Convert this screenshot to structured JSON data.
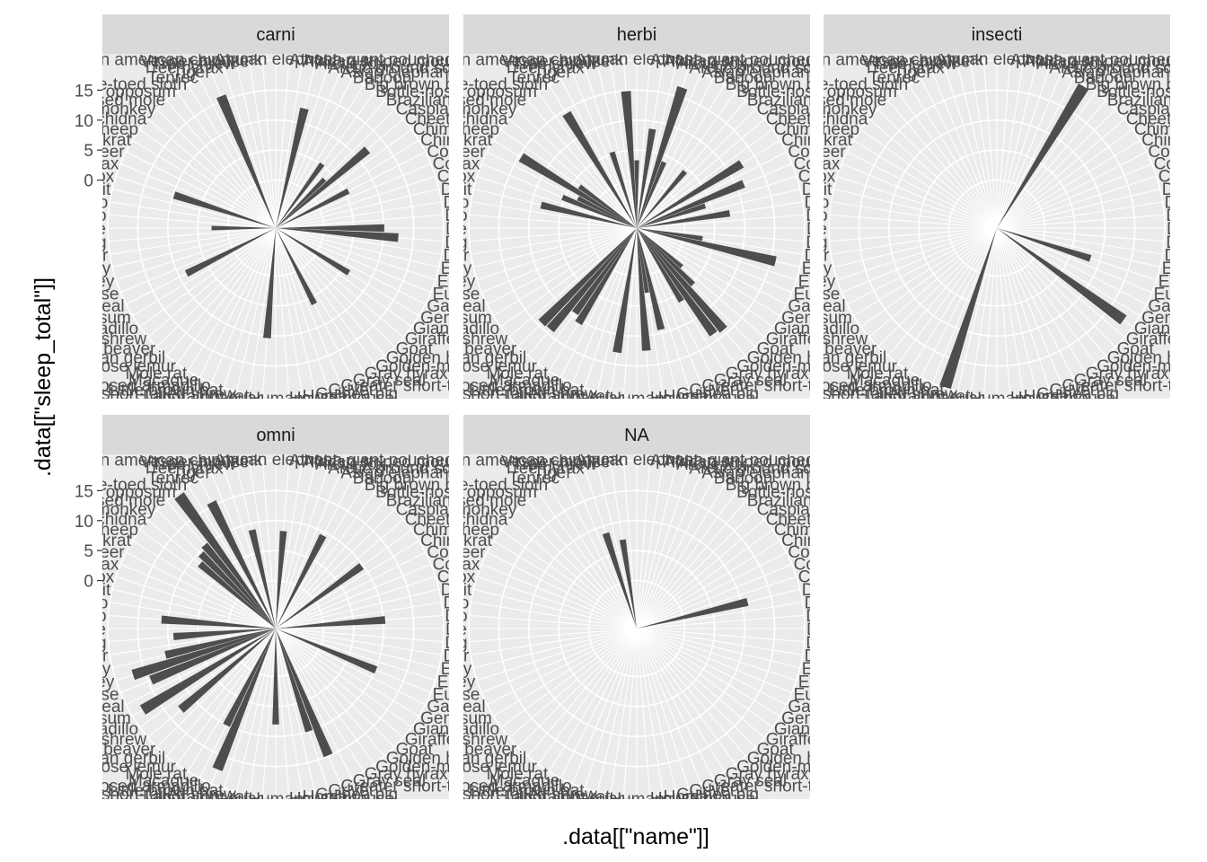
{
  "chart_data": {
    "type": "bar",
    "coord": "polar",
    "facet_var": "vore",
    "xlabel": ".data[[\"name\"]]",
    "ylabel": ".data[[\"sleep_total\"]]",
    "ylim": [
      -8,
      20
    ],
    "y_ticks": [
      0,
      5,
      10,
      15
    ],
    "y_tick_labels": [
      "0",
      "5",
      "10",
      "15"
    ],
    "bar_color": "#4d4d4d",
    "panel_background": "#ebebeb",
    "strip_background": "#d9d9d9",
    "grid_color": "#ffffff",
    "categories": [
      "African elephant",
      "African giant pouched rat",
      "African striped mouse",
      "Arctic fox",
      "Arctic ground squirrel",
      "Asian elephant",
      "Baboon",
      "Big brown bat",
      "Bottle-nosed dolphin",
      "Brazilian tapir",
      "Caspian seal",
      "Cheetah",
      "Chimpanzee",
      "Chinchilla",
      "Common porpoise",
      "Cotton rat",
      "Cow",
      "Deer mouse",
      "Degu",
      "Desert hedgehog",
      "Dog",
      "Domestic cat",
      "Donkey",
      "Eastern american chipmunk",
      "Eastern american mole",
      "European hedgehog",
      "Galago",
      "Genet",
      "Giant armadillo",
      "Giraffe",
      "Goat",
      "Golden hamster",
      "Golden-mantled ground squirrel",
      "Gray hyrax",
      "Gray seal",
      "Greater short-tailed shrew",
      "Grivet",
      "Guinea pig",
      "Horse",
      "House mouse",
      "Human",
      "Jaguar",
      "Laboratory rat",
      "Lesser short-tailed shrew",
      "Little brown bat",
      "Long-nosed armadillo",
      "Macaque",
      "Mole rat",
      "Mongoose lemur",
      "Mongolian gerbil",
      "Mountain beaver",
      "Musk shrew",
      "Nine-banded armadillo",
      "North American Opossum",
      "Northern fur seal",
      "Northern grasshopper mouse",
      "Owl monkey",
      "Patas monkey",
      "Phalanger",
      "Pig",
      "Pilot whale",
      "Potoroo",
      "Potto",
      "Rabbit",
      "Red fox",
      "Rock hyrax",
      "Roe deer",
      "Round-tailed muskrat",
      "Sheep",
      "Short-nosed echidna",
      "Squirrel monkey",
      "Star-nosed mole",
      "Thick-tailed opposum",
      "Three-toed sloth",
      "Tenrec",
      "Tiger",
      "Tree hyrax",
      "Tree shrew",
      "Vesper mouse",
      "Western american chipmunk"
    ],
    "panels": [
      {
        "label": "carni",
        "values": [
          null,
          null,
          null,
          12.5,
          null,
          null,
          null,
          null,
          5.2,
          null,
          3.5,
          12.1,
          null,
          null,
          5.6,
          null,
          null,
          null,
          null,
          null,
          10.1,
          12.5,
          null,
          null,
          null,
          null,
          null,
          6.3,
          null,
          null,
          null,
          null,
          null,
          null,
          6.2,
          null,
          null,
          null,
          null,
          null,
          null,
          10.4,
          null,
          null,
          null,
          null,
          null,
          null,
          null,
          null,
          null,
          null,
          null,
          null,
          8.7,
          null,
          null,
          null,
          null,
          null,
          2.7,
          null,
          null,
          null,
          9.8,
          null,
          null,
          null,
          null,
          null,
          null,
          null,
          null,
          null,
          null,
          15.8,
          null,
          null,
          null,
          null
        ]
      },
      {
        "label": "herbi",
        "values": [
          3.3,
          null,
          8.7,
          null,
          16.6,
          3.9,
          null,
          null,
          null,
          4.4,
          null,
          null,
          null,
          12.5,
          null,
          11.3,
          4.0,
          null,
          7.7,
          null,
          null,
          null,
          3.1,
          15.8,
          null,
          null,
          null,
          null,
          null,
          1.9,
          5.3,
          14.3,
          13.8,
          6.3,
          null,
          null,
          null,
          9.4,
          2.9,
          12.5,
          null,
          null,
          13.0,
          null,
          null,
          null,
          null,
          10.6,
          9.5,
          14.2,
          14.4,
          null,
          null,
          null,
          null,
          null,
          null,
          null,
          null,
          null,
          null,
          null,
          null,
          8.4,
          null,
          5.4,
          3.0,
          14.6,
          3.8,
          null,
          null,
          null,
          null,
          14.4,
          null,
          null,
          5.3,
          null,
          null,
          14.9
        ]
      },
      {
        "label": "insecti",
        "values": [
          null,
          null,
          null,
          null,
          null,
          null,
          null,
          19.7,
          null,
          null,
          null,
          null,
          null,
          null,
          null,
          null,
          null,
          null,
          null,
          null,
          null,
          null,
          null,
          null,
          8.4,
          null,
          null,
          null,
          18.1,
          null,
          null,
          null,
          null,
          null,
          null,
          null,
          null,
          null,
          null,
          null,
          null,
          null,
          null,
          null,
          19.9,
          null,
          null,
          null,
          null,
          null,
          null,
          null,
          null,
          null,
          null,
          null,
          null,
          null,
          null,
          null,
          null,
          null,
          null,
          null,
          null,
          null,
          null,
          null,
          null,
          null,
          null,
          null,
          null,
          null,
          null,
          null,
          null,
          null,
          null,
          null
        ]
      },
      {
        "label": "omni",
        "values": [
          null,
          8.3,
          null,
          null,
          null,
          null,
          9.4,
          null,
          null,
          null,
          null,
          null,
          9.7,
          null,
          null,
          null,
          null,
          null,
          null,
          10.3,
          null,
          null,
          null,
          null,
          null,
          10.1,
          null,
          null,
          null,
          null,
          null,
          null,
          null,
          null,
          null,
          14.9,
          10.0,
          null,
          null,
          null,
          8.0,
          null,
          null,
          null,
          null,
          17.4,
          10.1,
          null,
          null,
          null,
          null,
          12.8,
          null,
          18.0,
          null,
          14.5,
          17.0,
          10.9,
          null,
          9.1,
          null,
          11.1,
          null,
          null,
          null,
          null,
          null,
          null,
          null,
          8.6,
          9.6,
          10.3,
          19.4,
          null,
          15.6,
          null,
          null,
          8.9,
          null,
          null
        ]
      },
      {
        "label": "NA",
        "values": [
          null,
          null,
          null,
          null,
          null,
          null,
          null,
          null,
          null,
          null,
          null,
          null,
          null,
          null,
          null,
          null,
          null,
          11.0,
          null,
          null,
          null,
          null,
          null,
          null,
          null,
          null,
          null,
          null,
          null,
          null,
          null,
          null,
          null,
          null,
          null,
          null,
          null,
          null,
          null,
          null,
          null,
          null,
          null,
          null,
          null,
          null,
          null,
          null,
          null,
          null,
          null,
          null,
          null,
          null,
          null,
          null,
          null,
          null,
          null,
          null,
          null,
          null,
          null,
          null,
          null,
          null,
          null,
          null,
          null,
          null,
          null,
          null,
          null,
          null,
          null,
          null,
          8.7,
          null,
          7.0,
          null
        ]
      }
    ]
  }
}
